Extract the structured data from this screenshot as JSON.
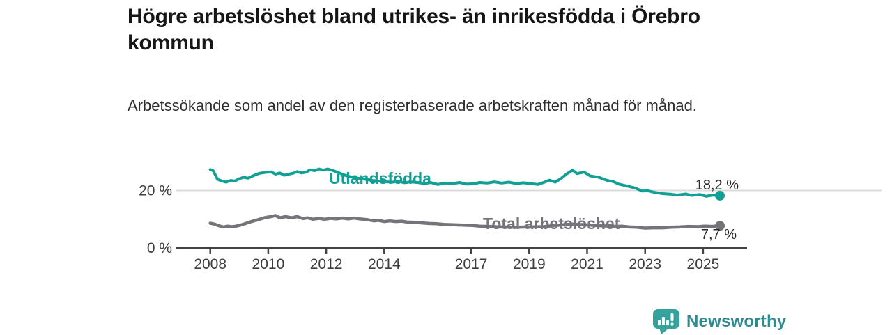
{
  "header": {
    "title": "Högre arbetslöshet bland utrikes- än inrikesfödda i Örebro kommun",
    "subtitle": "Arbetssökande som andel av den registerbaserade arbetskraften månad för månad."
  },
  "footer": {
    "brand": "Newsworthy",
    "logo_icon": "newsworthy-bar-chart-bubble-icon",
    "brand_color": "#36a29d",
    "brand_text_color": "#2f8b90"
  },
  "colors": {
    "background": "#ffffff",
    "gridline": "#dcdcdc",
    "axis": "#424242",
    "tick_text": "#3d3d3d",
    "value_label_text": "#262626"
  },
  "chart_data": {
    "type": "line",
    "title": "Högre arbetslöshet bland utrikes- än inrikesfödda i Örebro kommun",
    "subtitle": "Arbetssökande som andel av den registerbaserade arbetskraften månad för månad.",
    "xlabel": "",
    "ylabel": "",
    "x_range": [
      2008.0,
      2025.58
    ],
    "ylim": [
      0,
      29
    ],
    "grid": "y-at-20-only",
    "legend_position": "inline-labels-on-lines",
    "x_ticks": [
      2008,
      2010,
      2012,
      2014,
      2017,
      2019,
      2021,
      2023,
      2025
    ],
    "y_ticks": [
      {
        "value": 20,
        "label": "20 %",
        "gridline": true
      },
      {
        "value": 0,
        "label": "0 %",
        "gridline": false
      }
    ],
    "series": [
      {
        "name": "Utlandsfödda",
        "color": "#12a094",
        "end_value": 18.2,
        "end_label": "18,2 %",
        "points": [
          [
            2008.0,
            27.3
          ],
          [
            2008.1,
            26.9
          ],
          [
            2008.25,
            23.9
          ],
          [
            2008.4,
            23.3
          ],
          [
            2008.55,
            22.9
          ],
          [
            2008.7,
            23.5
          ],
          [
            2008.85,
            23.3
          ],
          [
            2009.0,
            24.1
          ],
          [
            2009.15,
            24.6
          ],
          [
            2009.3,
            24.3
          ],
          [
            2009.5,
            25.2
          ],
          [
            2009.7,
            26.0
          ],
          [
            2009.9,
            26.3
          ],
          [
            2010.1,
            26.5
          ],
          [
            2010.25,
            25.7
          ],
          [
            2010.4,
            26.1
          ],
          [
            2010.55,
            25.3
          ],
          [
            2010.7,
            25.7
          ],
          [
            2010.85,
            26.0
          ],
          [
            2011.0,
            26.6
          ],
          [
            2011.15,
            26.1
          ],
          [
            2011.3,
            26.4
          ],
          [
            2011.45,
            27.2
          ],
          [
            2011.6,
            26.9
          ],
          [
            2011.75,
            27.5
          ],
          [
            2011.9,
            27.1
          ],
          [
            2012.05,
            27.5
          ],
          [
            2012.25,
            26.9
          ],
          [
            2012.45,
            26.1
          ],
          [
            2012.65,
            25.3
          ],
          [
            2012.85,
            24.7
          ],
          [
            2013.1,
            24.3
          ],
          [
            2013.35,
            23.9
          ],
          [
            2013.6,
            23.5
          ],
          [
            2013.85,
            23.2
          ],
          [
            2014.1,
            23.0
          ],
          [
            2014.3,
            22.9
          ],
          [
            2014.5,
            23.2
          ],
          [
            2014.7,
            22.7
          ],
          [
            2014.9,
            23.0
          ],
          [
            2015.15,
            22.8
          ],
          [
            2015.4,
            22.4
          ],
          [
            2015.6,
            22.8
          ],
          [
            2015.85,
            22.1
          ],
          [
            2016.1,
            22.6
          ],
          [
            2016.35,
            22.4
          ],
          [
            2016.6,
            22.8
          ],
          [
            2016.85,
            22.2
          ],
          [
            2017.1,
            22.4
          ],
          [
            2017.3,
            22.8
          ],
          [
            2017.55,
            22.6
          ],
          [
            2017.8,
            23.0
          ],
          [
            2018.05,
            22.6
          ],
          [
            2018.3,
            22.9
          ],
          [
            2018.55,
            22.4
          ],
          [
            2018.8,
            22.7
          ],
          [
            2019.05,
            22.4
          ],
          [
            2019.3,
            22.1
          ],
          [
            2019.5,
            22.8
          ],
          [
            2019.7,
            23.6
          ],
          [
            2019.9,
            22.9
          ],
          [
            2020.1,
            24.2
          ],
          [
            2020.3,
            25.8
          ],
          [
            2020.5,
            27.1
          ],
          [
            2020.65,
            25.9
          ],
          [
            2020.9,
            26.4
          ],
          [
            2021.1,
            25.1
          ],
          [
            2021.4,
            24.6
          ],
          [
            2021.7,
            23.5
          ],
          [
            2021.9,
            23.1
          ],
          [
            2022.1,
            22.2
          ],
          [
            2022.4,
            21.5
          ],
          [
            2022.65,
            20.9
          ],
          [
            2022.9,
            19.8
          ],
          [
            2023.1,
            19.9
          ],
          [
            2023.35,
            19.3
          ],
          [
            2023.6,
            18.9
          ],
          [
            2023.9,
            18.7
          ],
          [
            2024.1,
            18.4
          ],
          [
            2024.4,
            18.8
          ],
          [
            2024.6,
            18.3
          ],
          [
            2024.9,
            18.6
          ],
          [
            2025.1,
            18.0
          ],
          [
            2025.35,
            18.4
          ],
          [
            2025.58,
            18.2
          ]
        ]
      },
      {
        "name": "Total arbetslöshet",
        "color": "#74747a",
        "end_value": 7.7,
        "end_label": "7,7 %",
        "points": [
          [
            2008.0,
            8.6
          ],
          [
            2008.15,
            8.3
          ],
          [
            2008.3,
            7.7
          ],
          [
            2008.45,
            7.3
          ],
          [
            2008.6,
            7.6
          ],
          [
            2008.75,
            7.4
          ],
          [
            2008.9,
            7.6
          ],
          [
            2009.1,
            8.1
          ],
          [
            2009.3,
            8.8
          ],
          [
            2009.5,
            9.4
          ],
          [
            2009.7,
            10.0
          ],
          [
            2009.9,
            10.6
          ],
          [
            2010.1,
            10.9
          ],
          [
            2010.25,
            11.3
          ],
          [
            2010.4,
            10.5
          ],
          [
            2010.6,
            10.9
          ],
          [
            2010.8,
            10.5
          ],
          [
            2011.0,
            10.9
          ],
          [
            2011.2,
            10.2
          ],
          [
            2011.35,
            10.5
          ],
          [
            2011.55,
            10.0
          ],
          [
            2011.75,
            10.3
          ],
          [
            2011.95,
            10.0
          ],
          [
            2012.15,
            10.3
          ],
          [
            2012.35,
            10.1
          ],
          [
            2012.55,
            10.4
          ],
          [
            2012.75,
            10.1
          ],
          [
            2012.95,
            10.4
          ],
          [
            2013.15,
            10.1
          ],
          [
            2013.4,
            9.9
          ],
          [
            2013.65,
            9.4
          ],
          [
            2013.8,
            9.6
          ],
          [
            2014.0,
            9.2
          ],
          [
            2014.2,
            9.4
          ],
          [
            2014.4,
            9.2
          ],
          [
            2014.6,
            9.3
          ],
          [
            2014.8,
            9.0
          ],
          [
            2015.05,
            8.9
          ],
          [
            2015.3,
            8.7
          ],
          [
            2015.55,
            8.5
          ],
          [
            2015.8,
            8.4
          ],
          [
            2016.05,
            8.2
          ],
          [
            2016.3,
            8.1
          ],
          [
            2016.55,
            8.0
          ],
          [
            2016.8,
            7.9
          ],
          [
            2017.05,
            7.8
          ],
          [
            2017.3,
            7.6
          ],
          [
            2017.6,
            7.5
          ],
          [
            2018.0,
            7.3
          ],
          [
            2018.5,
            7.2
          ],
          [
            2019.0,
            7.3
          ],
          [
            2019.5,
            7.4
          ],
          [
            2020.0,
            7.9
          ],
          [
            2020.5,
            8.3
          ],
          [
            2021.0,
            8.0
          ],
          [
            2021.5,
            7.7
          ],
          [
            2022.0,
            7.5
          ],
          [
            2022.2,
            7.6
          ],
          [
            2022.45,
            7.3
          ],
          [
            2022.7,
            7.2
          ],
          [
            2023.0,
            6.9
          ],
          [
            2023.3,
            7.0
          ],
          [
            2023.6,
            7.0
          ],
          [
            2023.9,
            7.2
          ],
          [
            2024.2,
            7.3
          ],
          [
            2024.5,
            7.5
          ],
          [
            2024.8,
            7.4
          ],
          [
            2025.05,
            7.6
          ],
          [
            2025.3,
            7.5
          ],
          [
            2025.58,
            7.7
          ]
        ]
      }
    ]
  }
}
